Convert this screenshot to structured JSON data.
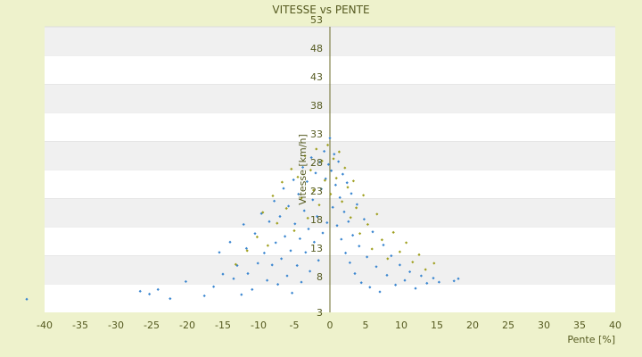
{
  "chart_data": {
    "type": "scatter",
    "title": "VITESSE vs PENTE",
    "xlabel": "Pente [%]",
    "ylabel": "Vitesse [km/h]",
    "xlim": [
      -40,
      40
    ],
    "ylim": [
      3,
      53
    ],
    "x_ticks": [
      -40,
      -35,
      -30,
      -25,
      -20,
      -15,
      -10,
      -5,
      0,
      5,
      10,
      15,
      20,
      25,
      30,
      35,
      40
    ],
    "y_ticks": [
      3,
      8,
      13,
      18,
      23,
      28,
      33,
      38,
      43,
      48,
      53
    ],
    "grid": "alternating horizontal bands",
    "legend": "none",
    "series": [
      {
        "color": "#3a86d0",
        "marker": "small diamond",
        "points": [
          [
            -42.5,
            5.3
          ],
          [
            -26.6,
            6.7
          ],
          [
            -25.3,
            6.2
          ],
          [
            -24.1,
            7.0
          ],
          [
            -22.4,
            5.4
          ],
          [
            -20.2,
            8.4
          ],
          [
            -17.6,
            5.9
          ],
          [
            -16.3,
            7.5
          ],
          [
            -15.5,
            13.5
          ],
          [
            -15.0,
            9.7
          ],
          [
            -14.0,
            15.3
          ],
          [
            -13.5,
            8.9
          ],
          [
            -13.0,
            11.2
          ],
          [
            -12.4,
            6.1
          ],
          [
            -12.1,
            18.4
          ],
          [
            -11.7,
            14.2
          ],
          [
            -11.5,
            9.8
          ],
          [
            -10.9,
            7.0
          ],
          [
            -10.5,
            16.8
          ],
          [
            -10.1,
            11.6
          ],
          [
            -9.6,
            20.3
          ],
          [
            -9.2,
            13.4
          ],
          [
            -8.8,
            8.6
          ],
          [
            -8.5,
            18.9
          ],
          [
            -8.1,
            11.3
          ],
          [
            -7.8,
            22.5
          ],
          [
            -7.6,
            15.2
          ],
          [
            -7.3,
            7.9
          ],
          [
            -7.0,
            19.8
          ],
          [
            -6.8,
            12.4
          ],
          [
            -6.5,
            24.7
          ],
          [
            -6.3,
            16.3
          ],
          [
            -6.0,
            9.4
          ],
          [
            -5.8,
            21.6
          ],
          [
            -5.5,
            13.8
          ],
          [
            -5.3,
            6.4
          ],
          [
            -5.1,
            26.2
          ],
          [
            -4.9,
            18.5
          ],
          [
            -4.6,
            11.2
          ],
          [
            -4.4,
            23.7
          ],
          [
            -4.2,
            15.9
          ],
          [
            -4.0,
            8.3
          ],
          [
            -3.8,
            28.4
          ],
          [
            -3.6,
            20.8
          ],
          [
            -3.4,
            13.5
          ],
          [
            -3.2,
            25.9
          ],
          [
            -3.0,
            17.6
          ],
          [
            -2.8,
            10.2
          ],
          [
            -2.6,
            30.1
          ],
          [
            -2.4,
            22.7
          ],
          [
            -2.2,
            15.3
          ],
          [
            -2.0,
            27.4
          ],
          [
            -1.8,
            19.8
          ],
          [
            -1.6,
            12.1
          ],
          [
            -1.4,
            29.3
          ],
          [
            -1.2,
            24.6
          ],
          [
            -1.0,
            16.9
          ],
          [
            -0.8,
            31.2
          ],
          [
            -0.6,
            26.4
          ],
          [
            -0.4,
            18.7
          ],
          [
            -0.2,
            28.9
          ],
          [
            0.0,
            33.5
          ],
          [
            0.2,
            27.8
          ],
          [
            0.4,
            21.4
          ],
          [
            0.6,
            30.7
          ],
          [
            0.8,
            25.3
          ],
          [
            1.0,
            18.2
          ],
          [
            1.2,
            29.4
          ],
          [
            1.4,
            23.1
          ],
          [
            1.6,
            15.8
          ],
          [
            1.8,
            27.2
          ],
          [
            2.0,
            20.6
          ],
          [
            2.2,
            13.4
          ],
          [
            2.4,
            25.7
          ],
          [
            2.6,
            18.9
          ],
          [
            2.8,
            11.7
          ],
          [
            3.0,
            23.8
          ],
          [
            3.2,
            16.5
          ],
          [
            3.5,
            9.8
          ],
          [
            3.8,
            21.9
          ],
          [
            4.1,
            14.6
          ],
          [
            4.4,
            8.2
          ],
          [
            4.8,
            19.3
          ],
          [
            5.2,
            12.7
          ],
          [
            5.6,
            7.4
          ],
          [
            6.0,
            17.1
          ],
          [
            6.5,
            11.0
          ],
          [
            7.0,
            6.6
          ],
          [
            7.5,
            14.8
          ],
          [
            8.0,
            9.5
          ],
          [
            8.6,
            12.9
          ],
          [
            9.2,
            7.8
          ],
          [
            9.8,
            11.3
          ],
          [
            10.5,
            8.6
          ],
          [
            11.2,
            10.1
          ],
          [
            12.0,
            7.2
          ],
          [
            12.8,
            9.4
          ],
          [
            13.6,
            8.1
          ],
          [
            14.5,
            9.0
          ],
          [
            15.3,
            8.3
          ],
          [
            17.4,
            8.5
          ],
          [
            18.0,
            8.9
          ]
        ]
      },
      {
        "color": "#a0a020",
        "marker": "small diamond",
        "points": [
          [
            -13.2,
            11.4
          ],
          [
            -11.6,
            13.8
          ],
          [
            -10.2,
            16.2
          ],
          [
            -9.4,
            20.5
          ],
          [
            -8.7,
            14.7
          ],
          [
            -8.0,
            23.4
          ],
          [
            -7.4,
            18.6
          ],
          [
            -6.7,
            25.8
          ],
          [
            -6.1,
            21.2
          ],
          [
            -5.4,
            28.1
          ],
          [
            -5.0,
            17.3
          ],
          [
            -4.5,
            26.7
          ],
          [
            -4.0,
            23.0
          ],
          [
            -3.5,
            30.4
          ],
          [
            -3.1,
            19.5
          ],
          [
            -2.7,
            27.9
          ],
          [
            -2.3,
            24.4
          ],
          [
            -1.9,
            31.6
          ],
          [
            -1.5,
            21.8
          ],
          [
            -1.1,
            29.5
          ],
          [
            -0.7,
            26.1
          ],
          [
            -0.3,
            32.3
          ],
          [
            0.1,
            23.7
          ],
          [
            0.5,
            29.9
          ],
          [
            0.9,
            26.5
          ],
          [
            1.3,
            31.1
          ],
          [
            1.7,
            22.4
          ],
          [
            2.1,
            28.3
          ],
          [
            2.5,
            24.9
          ],
          [
            2.9,
            19.6
          ],
          [
            3.3,
            26.0
          ],
          [
            3.7,
            21.3
          ],
          [
            4.2,
            16.8
          ],
          [
            4.7,
            23.5
          ],
          [
            5.3,
            18.4
          ],
          [
            5.9,
            14.1
          ],
          [
            6.6,
            20.2
          ],
          [
            7.3,
            15.7
          ],
          [
            8.1,
            12.4
          ],
          [
            8.9,
            17.0
          ],
          [
            9.8,
            13.6
          ],
          [
            10.7,
            15.2
          ],
          [
            11.6,
            11.8
          ],
          [
            12.5,
            13.1
          ],
          [
            13.4,
            10.5
          ],
          [
            14.6,
            11.6
          ]
        ]
      }
    ]
  }
}
